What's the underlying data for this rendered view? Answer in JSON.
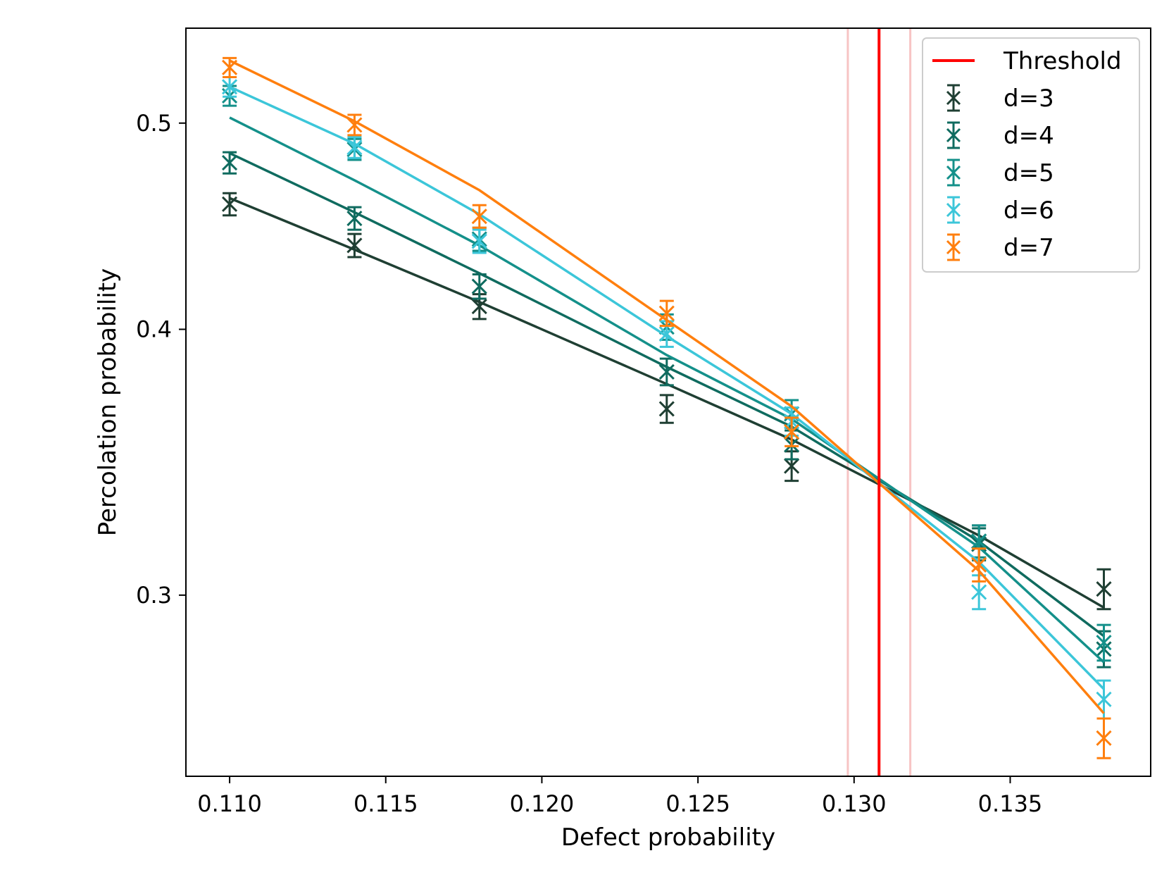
{
  "chart_data": {
    "type": "line",
    "xlabel": "Defect probability",
    "ylabel": "Percolation probability",
    "xlim": [
      0.1086,
      0.1395
    ],
    "ylim": [
      0.2466,
      0.5541
    ],
    "yscale": "log",
    "x_ticks": [
      {
        "value": 0.11,
        "label": "0.110"
      },
      {
        "value": 0.115,
        "label": "0.115"
      },
      {
        "value": 0.12,
        "label": "0.120"
      },
      {
        "value": 0.125,
        "label": "0.125"
      },
      {
        "value": 0.13,
        "label": "0.130"
      },
      {
        "value": 0.135,
        "label": "0.135"
      }
    ],
    "y_ticks": [
      {
        "value": 0.3,
        "label": "0.3"
      },
      {
        "value": 0.4,
        "label": "0.4"
      },
      {
        "value": 0.5,
        "label": "0.5"
      }
    ],
    "threshold": {
      "name": "Threshold",
      "x": 0.1308,
      "band": [
        0.1298,
        0.1318
      ],
      "color": "#ff0000",
      "band_color": "#f7c4c4"
    },
    "x": [
      0.11,
      0.114,
      0.118,
      0.124,
      0.128,
      0.134,
      0.138
    ],
    "series": [
      {
        "name": "d=3",
        "color": "#1f3f33",
        "values": [
          0.458,
          0.438,
          0.41,
          0.367,
          0.345,
          0.318,
          0.302
        ],
        "errors": [
          0.0055,
          0.0055,
          0.0055,
          0.0055,
          0.0055,
          0.0055,
          0.0065
        ],
        "fit": [
          0.461,
          0.436,
          0.412,
          0.377,
          0.355,
          0.32,
          0.296
        ]
      },
      {
        "name": "d=4",
        "color": "#0f6b5f",
        "values": [
          0.479,
          0.451,
          0.419,
          0.382,
          0.353,
          0.317,
          0.283
        ],
        "errors": [
          0.0055,
          0.0055,
          0.0055,
          0.0055,
          0.0055,
          0.0055,
          0.0055
        ],
        "fit": [
          0.484,
          0.454,
          0.425,
          0.384,
          0.36,
          0.318,
          0.287
        ]
      },
      {
        "name": "d=5",
        "color": "#14908a",
        "values": [
          0.515,
          0.486,
          0.441,
          0.401,
          0.365,
          0.318,
          0.285
        ],
        "errors": [
          0.0055,
          0.0055,
          0.0055,
          0.0055,
          0.0055,
          0.0055,
          0.0055
        ],
        "fit": [
          0.503,
          0.47,
          0.438,
          0.389,
          0.363,
          0.316,
          0.279
        ]
      },
      {
        "name": "d=6",
        "color": "#3cc6d9",
        "values": [
          0.52,
          0.487,
          0.44,
          0.398,
          0.362,
          0.301,
          0.268
        ],
        "errors": [
          0.0055,
          0.0055,
          0.0055,
          0.0055,
          0.0055,
          0.0055,
          0.0055
        ],
        "fit": [
          0.52,
          0.489,
          0.453,
          0.397,
          0.365,
          0.311,
          0.271
        ]
      },
      {
        "name": "d=7",
        "color": "#ff7f0e",
        "values": [
          0.531,
          0.499,
          0.452,
          0.407,
          0.358,
          0.31,
          0.257
        ],
        "errors": [
          0.0055,
          0.0055,
          0.0055,
          0.0055,
          0.0055,
          0.0055,
          0.0055
        ],
        "fit": [
          0.535,
          0.501,
          0.465,
          0.404,
          0.368,
          0.308,
          0.264
        ]
      }
    ]
  }
}
